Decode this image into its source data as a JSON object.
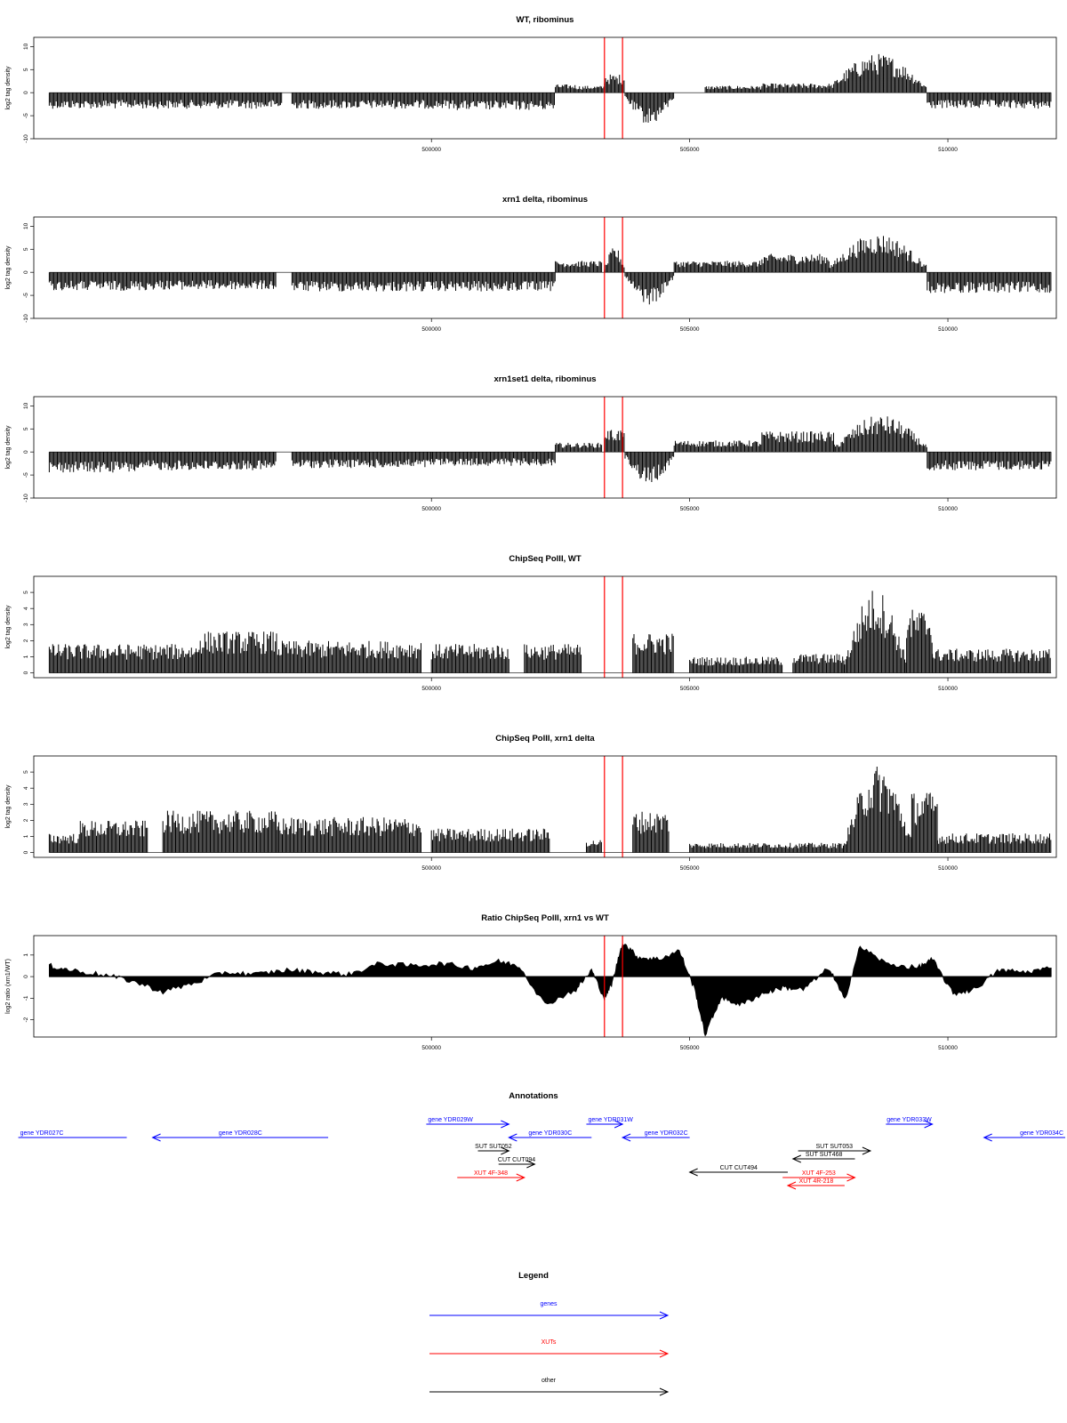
{
  "chart_data": [
    {
      "type": "bar",
      "title": "WT, ribominus",
      "xlabel": "",
      "ylabel": "log2 tag density",
      "xlim": [
        492300,
        512100
      ],
      "ylim": [
        -10,
        12
      ],
      "yticks": [
        -10,
        -5,
        0,
        5,
        10
      ],
      "xticks": [
        500000,
        505000,
        510000
      ],
      "xtick_labels": [
        "500000",
        "505000",
        "510000"
      ],
      "markers": [
        503350,
        503700
      ],
      "grid": false,
      "segments": [
        {
          "x": [
            492600,
            497100
          ],
          "sign": -1,
          "amp": 3.5
        },
        {
          "x": [
            497300,
            500500
          ],
          "sign": -1,
          "amp": 3.5
        },
        {
          "x": [
            500500,
            502400
          ],
          "sign": -1,
          "amp": 3.8
        },
        {
          "x": [
            502400,
            502800
          ],
          "sign": 1,
          "amp": 1.8
        },
        {
          "x": [
            502800,
            503350
          ],
          "sign": 1,
          "amp": 1.5
        },
        {
          "x": [
            503350,
            503750
          ],
          "sign": 1,
          "amp": 4.0
        },
        {
          "x": [
            503750,
            504700
          ],
          "sign": -1,
          "amp": 7.0
        },
        {
          "x": [
            505300,
            506400
          ],
          "sign": 1,
          "amp": 1.5
        },
        {
          "x": [
            506400,
            507700
          ],
          "sign": 1,
          "amp": 2.0
        },
        {
          "x": [
            507700,
            509600
          ],
          "sign": 1,
          "amp": 8.5
        },
        {
          "x": [
            509600,
            512000
          ],
          "sign": -1,
          "amp": 3.5
        }
      ]
    },
    {
      "type": "bar",
      "title": "xrn1 delta, ribominus",
      "xlabel": "",
      "ylabel": "log2 tag density",
      "xlim": [
        492300,
        512100
      ],
      "ylim": [
        -10,
        12
      ],
      "yticks": [
        -10,
        -5,
        0,
        5,
        10
      ],
      "xticks": [
        500000,
        505000,
        510000
      ],
      "xtick_labels": [
        "500000",
        "505000",
        "510000"
      ],
      "markers": [
        503350,
        503700
      ],
      "grid": false,
      "segments": [
        {
          "x": [
            492600,
            494500
          ],
          "sign": -1,
          "amp": 4.0
        },
        {
          "x": [
            494500,
            497000
          ],
          "sign": -1,
          "amp": 3.8
        },
        {
          "x": [
            497300,
            500000
          ],
          "sign": -1,
          "amp": 4.2
        },
        {
          "x": [
            500000,
            502400
          ],
          "sign": -1,
          "amp": 4.2
        },
        {
          "x": [
            502400,
            503300
          ],
          "sign": 1,
          "amp": 2.5
        },
        {
          "x": [
            503350,
            503750
          ],
          "sign": 1,
          "amp": 5.5
        },
        {
          "x": [
            503750,
            504700
          ],
          "sign": -1,
          "amp": 7.0
        },
        {
          "x": [
            504700,
            506400
          ],
          "sign": 1,
          "amp": 2.5
        },
        {
          "x": [
            506400,
            507700
          ],
          "sign": 1,
          "amp": 4.0
        },
        {
          "x": [
            507700,
            509600
          ],
          "sign": 1,
          "amp": 8.5
        },
        {
          "x": [
            509600,
            512000
          ],
          "sign": -1,
          "amp": 4.5
        }
      ]
    },
    {
      "type": "bar",
      "title": "xrn1set1 delta, ribominus",
      "xlabel": "",
      "ylabel": "log2 tag density",
      "xlim": [
        492300,
        512100
      ],
      "ylim": [
        -10,
        12
      ],
      "yticks": [
        -10,
        -5,
        0,
        5,
        10
      ],
      "xticks": [
        500000,
        505000,
        510000
      ],
      "xtick_labels": [
        "500000",
        "505000",
        "510000"
      ],
      "markers": [
        503350,
        503700
      ],
      "grid": false,
      "segments": [
        {
          "x": [
            492600,
            494500
          ],
          "sign": -1,
          "amp": 4.5
        },
        {
          "x": [
            494500,
            497000
          ],
          "sign": -1,
          "amp": 4.0
        },
        {
          "x": [
            497300,
            500000
          ],
          "sign": -1,
          "amp": 3.5
        },
        {
          "x": [
            500000,
            502400
          ],
          "sign": -1,
          "amp": 3.0
        },
        {
          "x": [
            502400,
            503300
          ],
          "sign": 1,
          "amp": 2.0
        },
        {
          "x": [
            503350,
            503750
          ],
          "sign": 1,
          "amp": 5.0
        },
        {
          "x": [
            503750,
            504700
          ],
          "sign": -1,
          "amp": 7.0
        },
        {
          "x": [
            504700,
            506400
          ],
          "sign": 1,
          "amp": 2.5
        },
        {
          "x": [
            506400,
            507800
          ],
          "sign": 1,
          "amp": 4.5
        },
        {
          "x": [
            507800,
            509600
          ],
          "sign": 1,
          "amp": 8.0
        },
        {
          "x": [
            509600,
            512000
          ],
          "sign": -1,
          "amp": 4.0
        }
      ]
    },
    {
      "type": "bar",
      "title": "ChipSeq PolII, WT",
      "xlabel": "",
      "ylabel": "log2 tag density",
      "xlim": [
        492300,
        512100
      ],
      "ylim": [
        -0.3,
        6
      ],
      "yticks": [
        0,
        1,
        2,
        3,
        4,
        5
      ],
      "xticks": [
        500000,
        505000,
        510000
      ],
      "xtick_labels": [
        "500000",
        "505000",
        "510000"
      ],
      "markers": [
        503350,
        503700
      ],
      "grid": false,
      "segments": [
        {
          "x": [
            492600,
            495500
          ],
          "sign": 1,
          "amp": 1.8
        },
        {
          "x": [
            495500,
            497000
          ],
          "sign": 1,
          "amp": 2.6
        },
        {
          "x": [
            497000,
            499800
          ],
          "sign": 1,
          "amp": 2.0
        },
        {
          "x": [
            500000,
            501500
          ],
          "sign": 1,
          "amp": 1.8
        },
        {
          "x": [
            501800,
            502900
          ],
          "sign": 1,
          "amp": 1.8
        },
        {
          "x": [
            503900,
            504700
          ],
          "sign": 1,
          "amp": 2.5
        },
        {
          "x": [
            505000,
            506800
          ],
          "sign": 1,
          "amp": 1.0
        },
        {
          "x": [
            507000,
            508000
          ],
          "sign": 1,
          "amp": 1.2
        },
        {
          "x": [
            508000,
            509200
          ],
          "sign": 1,
          "amp": 5.3
        },
        {
          "x": [
            509200,
            509700
          ],
          "sign": 1,
          "amp": 4.0
        },
        {
          "x": [
            509700,
            512000
          ],
          "sign": 1,
          "amp": 1.5
        }
      ]
    },
    {
      "type": "bar",
      "title": "ChipSeq PolII, xrn1 delta",
      "xlabel": "",
      "ylabel": "log2 tag density",
      "xlim": [
        492300,
        512100
      ],
      "ylim": [
        -0.3,
        6
      ],
      "yticks": [
        0,
        1,
        2,
        3,
        4,
        5
      ],
      "xticks": [
        500000,
        505000,
        510000
      ],
      "xtick_labels": [
        "500000",
        "505000",
        "510000"
      ],
      "markers": [
        503350,
        503700
      ],
      "grid": false,
      "segments": [
        {
          "x": [
            492600,
            493200
          ],
          "sign": 1,
          "amp": 1.2
        },
        {
          "x": [
            493200,
            494500
          ],
          "sign": 1,
          "amp": 2.0
        },
        {
          "x": [
            494800,
            497000
          ],
          "sign": 1,
          "amp": 2.6
        },
        {
          "x": [
            497000,
            499800
          ],
          "sign": 1,
          "amp": 2.2
        },
        {
          "x": [
            500000,
            502300
          ],
          "sign": 1,
          "amp": 1.5
        },
        {
          "x": [
            503000,
            503300
          ],
          "sign": 1,
          "amp": 0.8
        },
        {
          "x": [
            503900,
            504600
          ],
          "sign": 1,
          "amp": 2.6
        },
        {
          "x": [
            505000,
            508000
          ],
          "sign": 1,
          "amp": 0.6
        },
        {
          "x": [
            508000,
            509300
          ],
          "sign": 1,
          "amp": 5.5
        },
        {
          "x": [
            509300,
            509800
          ],
          "sign": 1,
          "amp": 3.8
        },
        {
          "x": [
            509800,
            512000
          ],
          "sign": 1,
          "amp": 1.2
        }
      ]
    },
    {
      "type": "area",
      "title": "Ratio ChipSeq PolII, xrn1 vs WT",
      "xlabel": "",
      "ylabel": "log2 ratio (xrn1/WT)",
      "xlim": [
        492300,
        512100
      ],
      "ylim": [
        -2.8,
        1.9
      ],
      "yticks": [
        -2,
        -1,
        0,
        1
      ],
      "xticks": [
        500000,
        505000,
        510000
      ],
      "xtick_labels": [
        "500000",
        "505000",
        "510000"
      ],
      "markers": [
        503350,
        503700
      ],
      "grid": false,
      "x": [
        492600,
        493000,
        493600,
        494200,
        494800,
        495400,
        496000,
        496600,
        497200,
        497800,
        498400,
        499000,
        499600,
        500200,
        500800,
        501300,
        501700,
        502200,
        502800,
        503100,
        503350,
        503500,
        503700,
        504000,
        504400,
        504800,
        505100,
        505300,
        505600,
        506000,
        506400,
        506800,
        507200,
        507700,
        508000,
        508300,
        508800,
        509400,
        509700,
        510100,
        510500,
        511000,
        511500,
        512000
      ],
      "y": [
        0.5,
        0.3,
        0.1,
        -0.2,
        -0.7,
        -0.3,
        0.2,
        0.1,
        0.3,
        0.2,
        0.1,
        0.6,
        0.5,
        0.6,
        0.4,
        0.7,
        0.5,
        -1.3,
        -0.6,
        0.3,
        -1.0,
        -0.3,
        1.6,
        0.9,
        0.8,
        1.2,
        -0.6,
        -2.7,
        -1.0,
        -1.3,
        -0.8,
        -0.5,
        -0.6,
        0.4,
        -1.1,
        1.4,
        0.6,
        0.4,
        0.8,
        -0.8,
        -0.6,
        0.3,
        0.2,
        0.4
      ]
    }
  ],
  "annotations": {
    "title": "Annotations",
    "items": [
      {
        "label": "gene YDR027C",
        "color": "#0000ff",
        "start": 492000,
        "end": 494100,
        "dir": "none",
        "row": 1,
        "label_pos": "left"
      },
      {
        "label": "gene YDR028C",
        "color": "#0000ff",
        "start": 494600,
        "end": 498000,
        "dir": "left",
        "row": 1,
        "label_pos": "center"
      },
      {
        "label": "gene YDR029W",
        "color": "#0000ff",
        "start": 499900,
        "end": 501500,
        "dir": "right",
        "row": 0,
        "label_pos": "left"
      },
      {
        "label": "gene YDR030C",
        "color": "#0000ff",
        "start": 501500,
        "end": 503100,
        "dir": "left",
        "row": 1,
        "label_pos": "center"
      },
      {
        "label": "gene YDR031W",
        "color": "#0000ff",
        "start": 503000,
        "end": 503700,
        "dir": "right",
        "row": 0,
        "label_pos": "left"
      },
      {
        "label": "gene YDR032C",
        "color": "#0000ff",
        "start": 503700,
        "end": 505000,
        "dir": "left",
        "row": 1,
        "label_pos": "right"
      },
      {
        "label": "gene YDR033W",
        "color": "#0000ff",
        "start": 508800,
        "end": 509700,
        "dir": "right",
        "row": 0,
        "label_pos": "center"
      },
      {
        "label": "gene YDR034C",
        "color": "#0000ff",
        "start": 510700,
        "end": 512700,
        "dir": "left",
        "row": 1,
        "label_pos": "right"
      },
      {
        "label": "SUT SUT052",
        "color": "#000000",
        "start": 500900,
        "end": 501500,
        "dir": "right",
        "row": 2,
        "label_pos": "center"
      },
      {
        "label": "CUT CUT094",
        "color": "#000000",
        "start": 501300,
        "end": 502000,
        "dir": "right",
        "row": 3,
        "label_pos": "center"
      },
      {
        "label": "XUT 4F-348",
        "color": "#ff0000",
        "start": 500500,
        "end": 501800,
        "dir": "right",
        "row": 4,
        "label_pos": "center"
      },
      {
        "label": "SUT SUT053",
        "color": "#000000",
        "start": 507100,
        "end": 508500,
        "dir": "right",
        "row": 2,
        "label_pos": "center"
      },
      {
        "label": "SUT SUT468",
        "color": "#000000",
        "start": 507000,
        "end": 508200,
        "dir": "left",
        "row": 2.6,
        "label_pos": "center"
      },
      {
        "label": "CUT CUT494",
        "color": "#000000",
        "start": 505000,
        "end": 506900,
        "dir": "left",
        "row": 3.6,
        "label_pos": "center"
      },
      {
        "label": "XUT 4F-253",
        "color": "#ff0000",
        "start": 506800,
        "end": 508200,
        "dir": "right",
        "row": 4,
        "label_pos": "center"
      },
      {
        "label": "XUT 4R-218",
        "color": "#ff0000",
        "start": 506900,
        "end": 508000,
        "dir": "left",
        "row": 4.6,
        "label_pos": "center"
      }
    ]
  },
  "legend": {
    "title": "Legend",
    "items": [
      {
        "label": "genes",
        "color": "#0000ff"
      },
      {
        "label": "XUTs",
        "color": "#ff0000"
      },
      {
        "label": "other",
        "color": "#000000"
      }
    ]
  }
}
